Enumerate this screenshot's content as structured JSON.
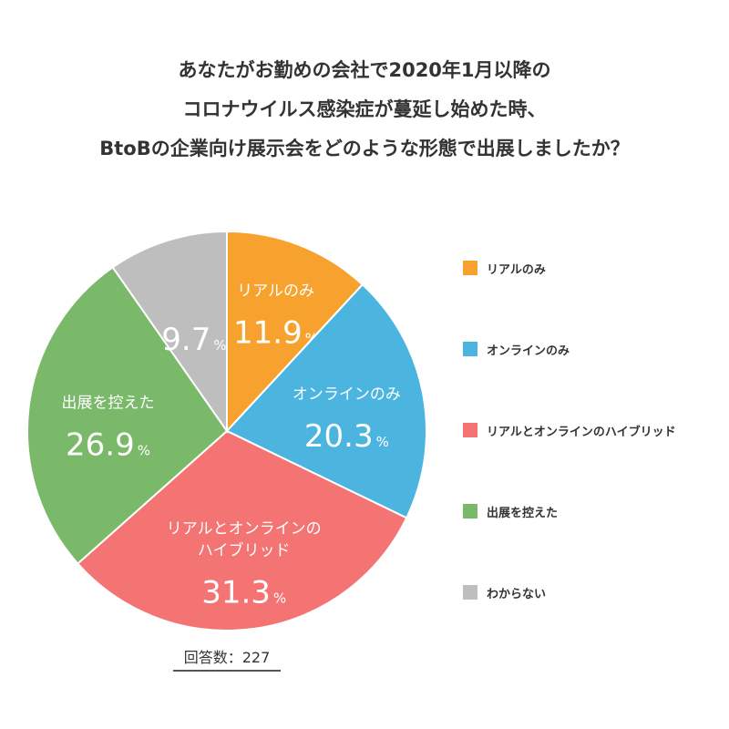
{
  "title_lines": [
    "あなたがお勤めの会社で2020年1月以降の",
    "コロナウイルス感染症が蔓延し始めた時、",
    "BtoBの企業向け展示会をどのような形態で出展しましたか？"
  ],
  "chart_data": {
    "type": "pie",
    "unit": "%",
    "slices": [
      {
        "label": "リアルのみ",
        "value": 11.9,
        "color": "#F7A22E",
        "slice_label": [
          "リアルのみ"
        ]
      },
      {
        "label": "オンラインのみ",
        "value": 20.3,
        "color": "#4BB5DF",
        "slice_label": [
          "オンラインのみ"
        ]
      },
      {
        "label": "リアルとオンラインのハイブリッド",
        "value": 31.3,
        "color": "#F47474",
        "slice_label": [
          "リアルとオンラインの",
          "ハイブリッド"
        ]
      },
      {
        "label": "出展を控えた",
        "value": 26.9,
        "color": "#7AB86A",
        "slice_label": [
          "出展を控えた"
        ]
      },
      {
        "label": "わからない",
        "value": 9.7,
        "color": "#BEBEBE",
        "slice_label": []
      }
    ],
    "legend_position": "right"
  },
  "footnote": "回答数：227"
}
